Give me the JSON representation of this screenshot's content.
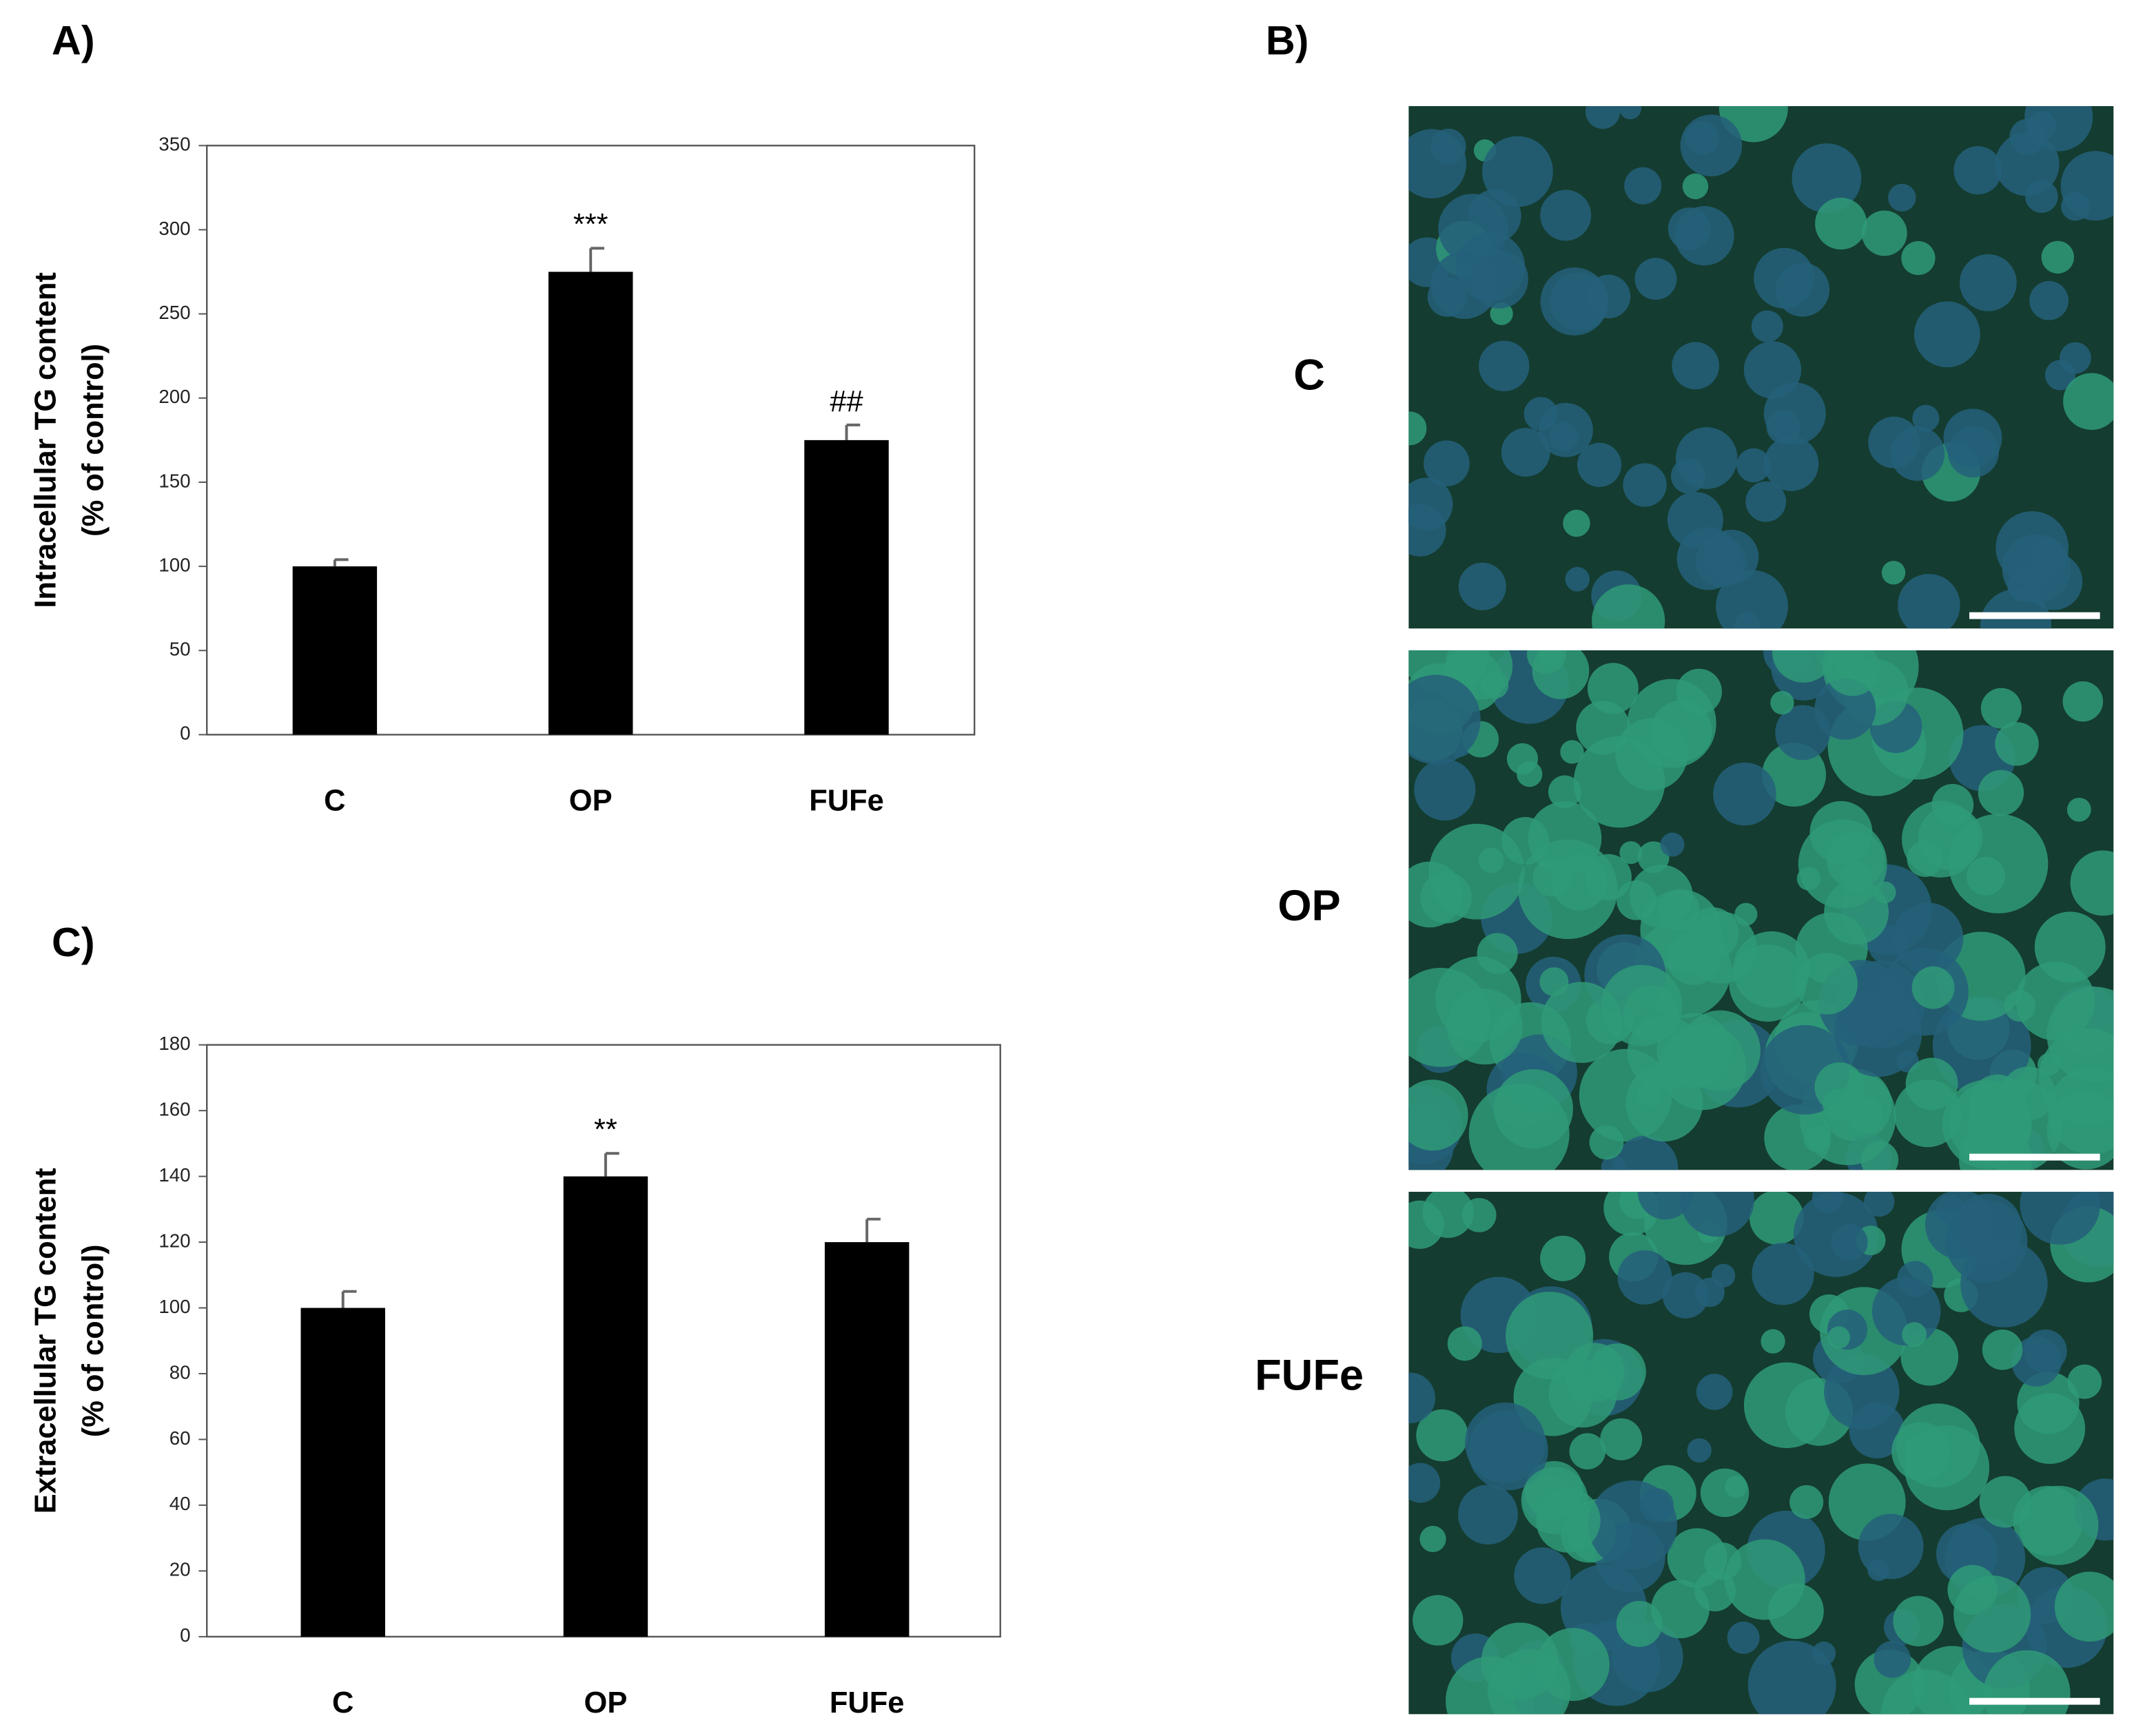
{
  "chart_data": [
    {
      "type": "bar",
      "panel_label": "A)",
      "ylabel": [
        "Intracellular TG content",
        "(% of control)"
      ],
      "categories": [
        "C",
        "OP",
        "FUFe"
      ],
      "values": [
        100,
        275,
        175
      ],
      "errors": [
        4,
        14,
        9
      ],
      "color": "#000000",
      "annotations": [
        {
          "category": "OP",
          "text": "***"
        },
        {
          "category": "FUFe",
          "text": "##"
        }
      ],
      "ylim": [
        0,
        350
      ],
      "yticks": [
        0,
        50,
        100,
        150,
        200,
        250,
        300,
        350
      ]
    },
    {
      "type": "bar",
      "panel_label": "C)",
      "ylabel": [
        "Extracellular TG content",
        "(% of control)"
      ],
      "categories": [
        "C",
        "OP",
        "FUFe"
      ],
      "values": [
        100,
        140,
        120
      ],
      "errors": [
        5,
        7,
        7
      ],
      "color": "#000000",
      "annotations": [
        {
          "category": "OP",
          "text": "**"
        }
      ],
      "ylim": [
        0,
        180
      ],
      "yticks": [
        0,
        20,
        40,
        60,
        80,
        100,
        120,
        140,
        160,
        180
      ]
    }
  ],
  "images": {
    "panel_label": "B)",
    "labels": [
      "C",
      "OP",
      "FUFe"
    ]
  }
}
